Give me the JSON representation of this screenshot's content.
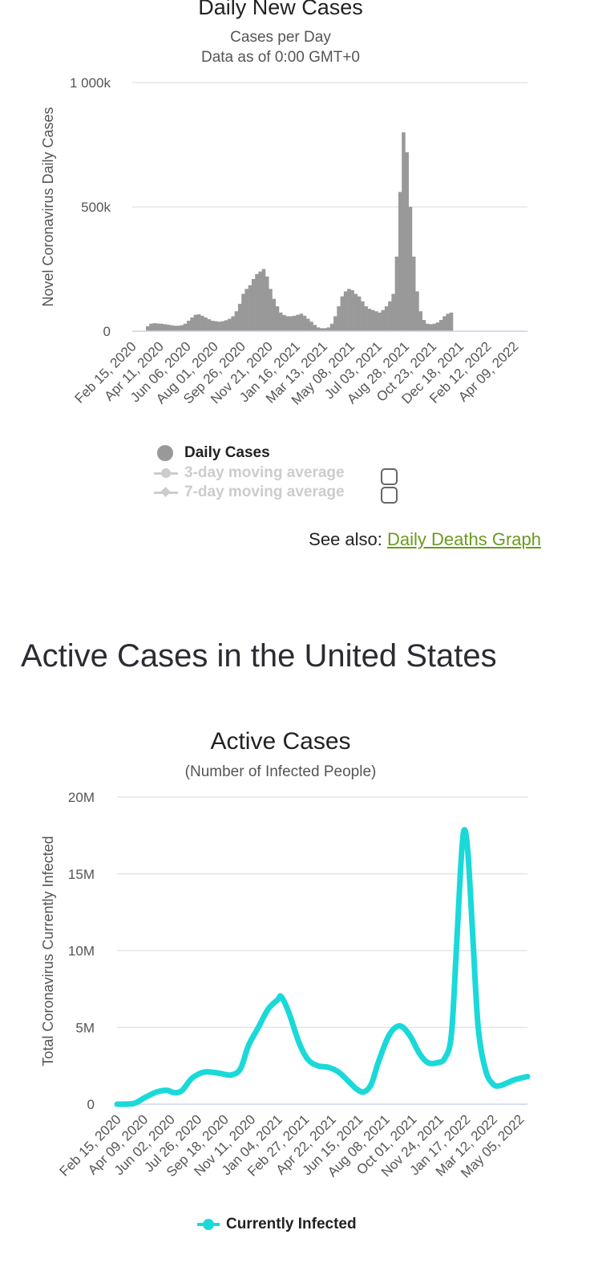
{
  "chart_data": [
    {
      "type": "bar",
      "title": "Daily New Cases",
      "subtitle": [
        "Cases per Day",
        "Data as of 0:00 GMT+0"
      ],
      "ylabel": "Novel Coronavirus Daily Cases",
      "ylim": [
        0,
        1000000
      ],
      "y_ticks": [
        {
          "value": 0,
          "label": "0"
        },
        {
          "value": 500000,
          "label": "500k"
        },
        {
          "value": 1000000,
          "label": "1 000k"
        }
      ],
      "x_ticks": [
        "Feb 15, 2020",
        "Apr 11, 2020",
        "Jun 06, 2020",
        "Aug 01, 2020",
        "Sep 26, 2020",
        "Nov 21, 2020",
        "Jan 16, 2021",
        "Mar 13, 2021",
        "May 08, 2021",
        "Jul 03, 2021",
        "Aug 28, 2021",
        "Oct 23, 2021",
        "Dec 18, 2021",
        "Feb 12, 2022",
        "Apr 09, 2022"
      ],
      "x_start": "Feb 15, 2020",
      "x_end": "May 06, 2022",
      "x_tick_interval_weeks": 8,
      "grid": true,
      "color": "#999999",
      "series": [
        {
          "name": "Daily Cases",
          "weekly_values": [
            0,
            0,
            0,
            2000,
            20000,
            30000,
            32000,
            31000,
            30000,
            28000,
            26000,
            24000,
            22000,
            22000,
            24000,
            30000,
            42000,
            55000,
            66000,
            68000,
            62000,
            55000,
            48000,
            42000,
            40000,
            38000,
            40000,
            44000,
            50000,
            60000,
            80000,
            110000,
            150000,
            170000,
            185000,
            210000,
            230000,
            240000,
            250000,
            220000,
            170000,
            130000,
            100000,
            75000,
            65000,
            60000,
            60000,
            62000,
            66000,
            70000,
            62000,
            50000,
            38000,
            25000,
            15000,
            12000,
            12000,
            15000,
            30000,
            60000,
            100000,
            140000,
            160000,
            170000,
            165000,
            150000,
            140000,
            120000,
            100000,
            90000,
            85000,
            80000,
            75000,
            85000,
            100000,
            120000,
            150000,
            300000,
            560000,
            800000,
            720000,
            500000,
            300000,
            160000,
            80000,
            45000,
            30000,
            28000,
            30000,
            35000,
            45000,
            60000,
            70000,
            75000
          ]
        },
        {
          "name": "3-day moving average",
          "enabled": false
        },
        {
          "name": "7-day moving average",
          "enabled": false
        }
      ]
    },
    {
      "type": "line",
      "title": "Active Cases",
      "subtitle": "(Number of Infected People)",
      "ylabel": "Total Coronavirus Currently Infected",
      "ylim": [
        0,
        20000000
      ],
      "y_ticks": [
        {
          "value": 0,
          "label": "0"
        },
        {
          "value": 5000000,
          "label": "5M"
        },
        {
          "value": 10000000,
          "label": "10M"
        },
        {
          "value": 15000000,
          "label": "15M"
        },
        {
          "value": 20000000,
          "label": "20M"
        }
      ],
      "x_ticks": [
        "Feb 15, 2020",
        "Apr 09, 2020",
        "Jun 02, 2020",
        "Jul 26, 2020",
        "Sep 18, 2020",
        "Nov 11, 2020",
        "Jan 04, 2021",
        "Feb 27, 2021",
        "Apr 22, 2021",
        "Jun 15, 2021",
        "Aug 08, 2021",
        "Oct 01, 2021",
        "Nov 24, 2021",
        "Jan 17, 2022",
        "Mar 12, 2022",
        "May 05, 2022"
      ],
      "x_start": "Feb 15, 2020",
      "x_end": "May 20, 2022",
      "grid": true,
      "color": "#1ad9d9",
      "series": [
        {
          "name": "Currently Infected",
          "points": [
            [
              "Feb 15, 2020",
              0
            ],
            [
              "Mar 20, 2020",
              50000
            ],
            [
              "Apr 09, 2020",
              400000
            ],
            [
              "May 05, 2020",
              800000
            ],
            [
              "May 25, 2020",
              900000
            ],
            [
              "Jun 10, 2020",
              750000
            ],
            [
              "Jun 25, 2020",
              900000
            ],
            [
              "Jul 15, 2020",
              1700000
            ],
            [
              "Aug 10, 2020",
              2100000
            ],
            [
              "Sep 10, 2020",
              2000000
            ],
            [
              "Oct 01, 2020",
              1900000
            ],
            [
              "Oct 20, 2020",
              2300000
            ],
            [
              "Nov 05, 2020",
              3800000
            ],
            [
              "Nov 25, 2020",
              5000000
            ],
            [
              "Dec 15, 2020",
              6200000
            ],
            [
              "Jan 03, 2021",
              6800000
            ],
            [
              "Jan 10, 2021",
              7000000
            ],
            [
              "Jan 25, 2021",
              6000000
            ],
            [
              "Feb 15, 2021",
              4000000
            ],
            [
              "Mar 05, 2021",
              2900000
            ],
            [
              "Mar 25, 2021",
              2500000
            ],
            [
              "Apr 15, 2021",
              2400000
            ],
            [
              "May 05, 2021",
              2100000
            ],
            [
              "May 25, 2021",
              1500000
            ],
            [
              "Jun 10, 2021",
              1000000
            ],
            [
              "Jun 25, 2021",
              800000
            ],
            [
              "Jul 10, 2021",
              1300000
            ],
            [
              "Jul 25, 2021",
              2800000
            ],
            [
              "Aug 15, 2021",
              4500000
            ],
            [
              "Sep 05, 2021",
              5100000
            ],
            [
              "Sep 25, 2021",
              4500000
            ],
            [
              "Oct 15, 2021",
              3300000
            ],
            [
              "Nov 01, 2021",
              2700000
            ],
            [
              "Nov 20, 2021",
              2700000
            ],
            [
              "Dec 05, 2021",
              3000000
            ],
            [
              "Dec 18, 2021",
              4500000
            ],
            [
              "Dec 28, 2021",
              10000000
            ],
            [
              "Jan 05, 2022",
              15000000
            ],
            [
              "Jan 12, 2022",
              17800000
            ],
            [
              "Jan 20, 2022",
              16500000
            ],
            [
              "Jan 30, 2022",
              11000000
            ],
            [
              "Feb 10, 2022",
              5000000
            ],
            [
              "Feb 25, 2022",
              2200000
            ],
            [
              "Mar 12, 2022",
              1300000
            ],
            [
              "Mar 25, 2022",
              1200000
            ],
            [
              "Apr 10, 2022",
              1400000
            ],
            [
              "Apr 25, 2022",
              1600000
            ],
            [
              "May 20, 2022",
              1800000
            ]
          ]
        }
      ]
    }
  ],
  "see_also": {
    "prefix": "See also: ",
    "link": "Daily Deaths Graph"
  },
  "section_heading": "Active Cases in the United States"
}
